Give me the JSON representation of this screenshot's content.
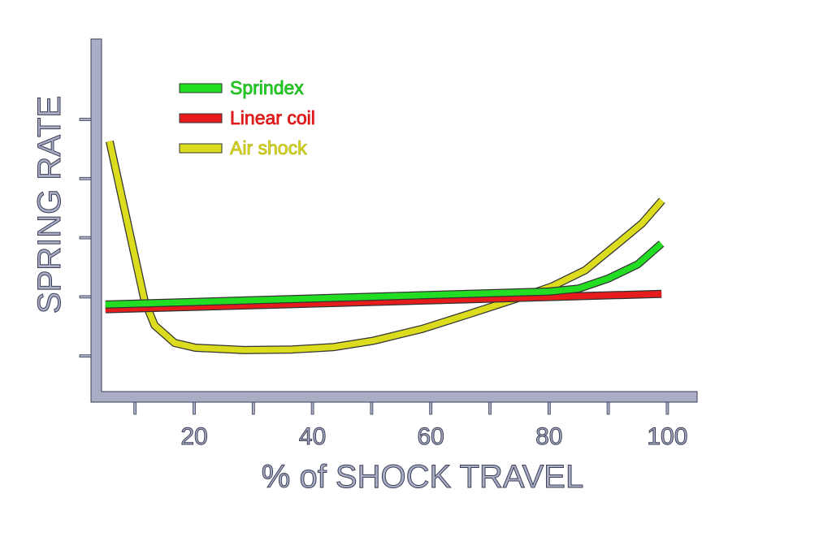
{
  "chart_data": {
    "type": "line",
    "title": "",
    "xlabel": "% of SHOCK TRAVEL",
    "ylabel": "SPRING RATE",
    "xlim": [
      0,
      105
    ],
    "ylim": [
      0.4,
      6.35
    ],
    "x_ticks": [
      10,
      20,
      30,
      40,
      50,
      60,
      70,
      80,
      90,
      100
    ],
    "x_tick_labels": [
      "20",
      "40",
      "60",
      "80",
      "100"
    ],
    "x_tick_label_values": [
      20,
      40,
      60,
      80,
      100
    ],
    "y_ticks": [
      1,
      2,
      3,
      4,
      5
    ],
    "y_tick_labels": [],
    "grid": false,
    "legend_position": "top-left",
    "axis_color": "#a9adc6",
    "series": [
      {
        "name": "Sprindex",
        "color": "#22dd22",
        "text_color": "#1fa81f",
        "x": [
          5,
          80,
          85,
          90,
          95,
          99
        ],
        "y": [
          1.87,
          2.09,
          2.14,
          2.31,
          2.55,
          2.9
        ]
      },
      {
        "name": "Linear coil",
        "color": "#e61c1c",
        "text_color": "#d41a1a",
        "x": [
          5,
          99
        ],
        "y": [
          1.79,
          2.05
        ]
      },
      {
        "name": "Air shock",
        "color": "#dcdc1e",
        "text_color": "#b5b516",
        "x": [
          5.7,
          11.6,
          13.3,
          16.7,
          20.2,
          28.4,
          36.6,
          43.5,
          50.4,
          58.6,
          66.8,
          75.1,
          80.6,
          86.1,
          91.6,
          95.7,
          99.1
        ],
        "y": [
          4.63,
          1.94,
          1.52,
          1.22,
          1.14,
          1.1,
          1.11,
          1.15,
          1.26,
          1.46,
          1.72,
          1.99,
          2.18,
          2.45,
          2.9,
          3.24,
          3.63
        ]
      }
    ]
  }
}
